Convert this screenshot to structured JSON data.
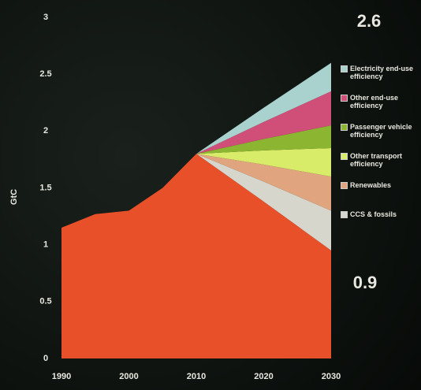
{
  "chart_data": {
    "type": "area",
    "y_label": "GtC",
    "x": [
      1990,
      1995,
      2000,
      2005,
      2010,
      2020,
      2030
    ],
    "xlim": [
      1990,
      2030
    ],
    "xticks": [
      1990,
      2000,
      2010,
      2020,
      2030
    ],
    "ylim": [
      0,
      3
    ],
    "yticks": [
      0,
      0.5,
      1,
      1.5,
      2,
      2.5,
      3
    ],
    "stacked": true,
    "series": [
      {
        "color": "#e8502a",
        "values": [
          1.15,
          1.27,
          1.3,
          1.5,
          1.8,
          1.38,
          0.95
        ]
      },
      {
        "name": "CCS & fossils",
        "color": "#d6d6cc",
        "values": [
          null,
          null,
          null,
          null,
          0,
          0.175,
          0.35
        ]
      },
      {
        "name": "Renewables",
        "color": "#e0a57e",
        "values": [
          null,
          null,
          null,
          null,
          0,
          0.15,
          0.3
        ]
      },
      {
        "name": "Other transport efficiency",
        "color": "#d8ec6a",
        "values": [
          null,
          null,
          null,
          null,
          0,
          0.125,
          0.25
        ]
      },
      {
        "name": "Passenger vehicle efficiency",
        "color": "#8cb531",
        "values": [
          null,
          null,
          null,
          null,
          0,
          0.1,
          0.2
        ]
      },
      {
        "name": "Other end-use efficiency",
        "color": "#cf4f78",
        "values": [
          null,
          null,
          null,
          null,
          0,
          0.15,
          0.3
        ]
      },
      {
        "name": "Electricity end-use efficiency",
        "color": "#a9d2cf",
        "values": [
          null,
          null,
          null,
          null,
          0,
          0.125,
          0.25
        ]
      }
    ],
    "annotations": [
      "2.6",
      "0.9"
    ]
  }
}
